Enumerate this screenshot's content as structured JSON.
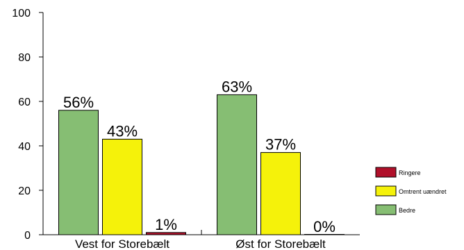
{
  "chart_data": {
    "type": "bar",
    "title": "",
    "xlabel": "",
    "ylabel": "",
    "ylim": [
      0,
      100
    ],
    "yticks": [
      0,
      20,
      40,
      60,
      80,
      100
    ],
    "categories": [
      "Vest for Storebælt",
      "Øst for Storebælt"
    ],
    "series": [
      {
        "name": "Bedre",
        "values": [
          56,
          63
        ],
        "labels": [
          "56%",
          "63%"
        ],
        "color": "#86be73"
      },
      {
        "name": "Omtrent uændret",
        "values": [
          43,
          37
        ],
        "labels": [
          "43%",
          "37%"
        ],
        "color": "#f5f20a"
      },
      {
        "name": "Ringere",
        "values": [
          1,
          0
        ],
        "labels": [
          "1%",
          "0%"
        ],
        "color": "#b0102a"
      }
    ],
    "legend": {
      "placement": "right",
      "order": [
        "Ringere",
        "Omtrent uændret",
        "Bedre"
      ]
    },
    "grid": false
  }
}
